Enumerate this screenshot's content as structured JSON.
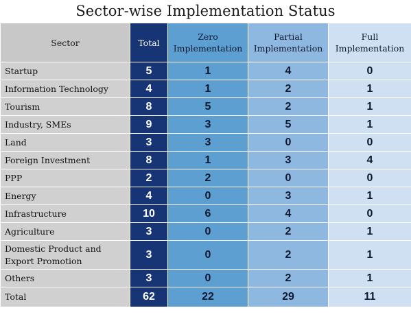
{
  "chart_data": {
    "type": "table",
    "title": "Sector-wise Implementation Status",
    "columns": [
      "Sector",
      "Total",
      "Zero Implementation",
      "Partial Implementation",
      "Full Implementation"
    ],
    "rows": [
      {
        "sector": "Startup",
        "total": "5",
        "zero": "1",
        "partial": "4",
        "full": "0"
      },
      {
        "sector": "Information Technology",
        "total": "4",
        "zero": "1",
        "partial": "2",
        "full": "1"
      },
      {
        "sector": "Tourism",
        "total": "8",
        "zero": "5",
        "partial": "2",
        "full": "1"
      },
      {
        "sector": "Industry, SMEs",
        "total": "9",
        "zero": "3",
        "partial": "5",
        "full": "1"
      },
      {
        "sector": "Land",
        "total": "3",
        "zero": "3",
        "partial": "0",
        "full": "0"
      },
      {
        "sector": "Foreign Investment",
        "total": "8",
        "zero": "1",
        "partial": "3",
        "full": "4"
      },
      {
        "sector": "PPP",
        "total": "2",
        "zero": "2",
        "partial": "0",
        "full": "0"
      },
      {
        "sector": "Energy",
        "total": "4",
        "zero": "0",
        "partial": "3",
        "full": "1"
      },
      {
        "sector": "Infrastructure",
        "total": "10",
        "zero": "6",
        "partial": "4",
        "full": "0"
      },
      {
        "sector": "Agriculture",
        "total": "3",
        "zero": "0",
        "partial": "2",
        "full": "1"
      },
      {
        "sector": "Domestic Product and Export Promotion",
        "total": "3",
        "zero": "0",
        "partial": "2",
        "full": "1"
      },
      {
        "sector": "Others",
        "total": "3",
        "zero": "0",
        "partial": "2",
        "full": "1"
      }
    ],
    "totals": {
      "sector": "Total",
      "total": "62",
      "zero": "22",
      "partial": "29",
      "full": "11"
    },
    "colors": {
      "sector": "#d0d0d0",
      "total": "#173574",
      "zero": "#5d9fd1",
      "partial": "#8fb8e0",
      "full": "#cfe0f2"
    }
  }
}
